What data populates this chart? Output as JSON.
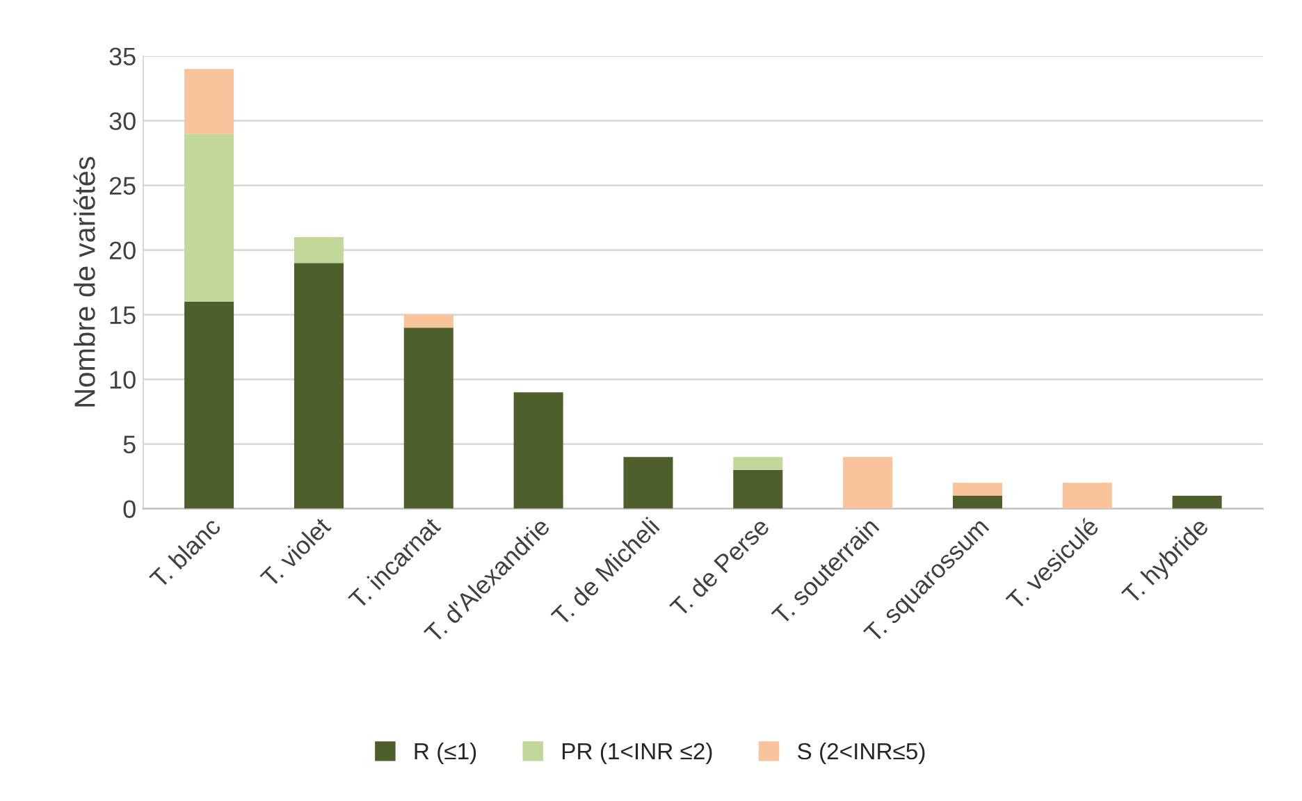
{
  "chart_data": {
    "type": "bar",
    "stacked": true,
    "ylabel": "Nombre de variétés",
    "categories": [
      "T. blanc",
      "T. violet",
      "T. incarnat",
      "T. d'Alexandrie",
      "T. de Micheli",
      "T. de Perse",
      "T. souterrain",
      "T. squarossum",
      "T. vesiculé",
      "T. hybride"
    ],
    "series": [
      {
        "name": "R (≤1)",
        "color": "#4e5f2b",
        "values": [
          16,
          19,
          14,
          9,
          4,
          3,
          0,
          1,
          0,
          1
        ]
      },
      {
        "name": "PR (1<INR ≤2)",
        "color": "#c4d79b",
        "values": [
          13,
          2,
          0,
          0,
          0,
          1,
          0,
          0,
          0,
          0
        ]
      },
      {
        "name": "S (2<INR≤5)",
        "color": "#f9c49b",
        "values": [
          5,
          0,
          1,
          0,
          0,
          0,
          4,
          1,
          2,
          0
        ]
      }
    ],
    "ylim": [
      0,
      35
    ],
    "yticks": [
      0,
      5,
      10,
      15,
      20,
      25,
      30,
      35
    ],
    "grid": "y",
    "legend": "bottom"
  }
}
